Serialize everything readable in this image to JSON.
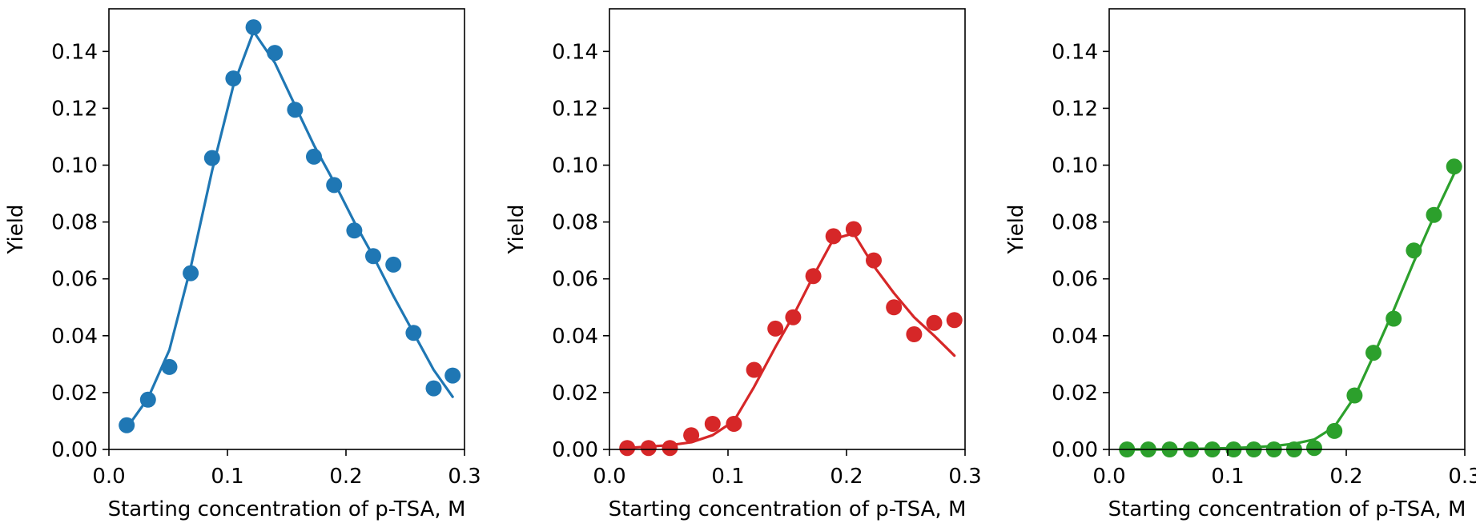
{
  "chart_data": [
    {
      "type": "scatter",
      "xlabel": "Starting concentration of p-TSA, M",
      "ylabel": "Yield",
      "xlim": [
        0.0,
        0.3
      ],
      "ylim": [
        0.0,
        0.155
      ],
      "xticks": [
        "0.0",
        "0.1",
        "0.2",
        "0.3"
      ],
      "yticks": [
        "0.00",
        "0.02",
        "0.04",
        "0.06",
        "0.08",
        "0.10",
        "0.12",
        "0.14"
      ],
      "color": "#1f77b4",
      "series": [
        {
          "x": [
            0.015,
            0.033,
            0.051,
            0.069,
            0.087,
            0.105,
            0.122,
            0.14,
            0.157,
            0.173,
            0.19,
            0.207,
            0.223,
            0.24,
            0.257,
            0.274,
            0.29
          ],
          "y": [
            0.0085,
            0.0175,
            0.029,
            0.062,
            0.1025,
            0.1305,
            0.1485,
            0.1395,
            0.1195,
            0.103,
            0.093,
            0.077,
            0.068,
            0.065,
            0.041,
            0.0215,
            0.026
          ]
        }
      ],
      "fit": {
        "x": [
          0.015,
          0.033,
          0.051,
          0.069,
          0.087,
          0.105,
          0.122,
          0.14,
          0.157,
          0.173,
          0.19,
          0.207,
          0.223,
          0.24,
          0.257,
          0.274,
          0.29
        ],
        "y": [
          0.0075,
          0.018,
          0.035,
          0.064,
          0.098,
          0.128,
          0.147,
          0.136,
          0.121,
          0.107,
          0.094,
          0.08,
          0.068,
          0.054,
          0.041,
          0.028,
          0.0185
        ]
      }
    },
    {
      "type": "scatter",
      "xlabel": "Starting concentration of p-TSA, M",
      "ylabel": "Yield",
      "xlim": [
        0.0,
        0.3
      ],
      "ylim": [
        0.0,
        0.155
      ],
      "xticks": [
        "0.0",
        "0.1",
        "0.2",
        "0.3"
      ],
      "yticks": [
        "0.00",
        "0.02",
        "0.04",
        "0.06",
        "0.08",
        "0.10",
        "0.12",
        "0.14"
      ],
      "color": "#d62728",
      "series": [
        {
          "x": [
            0.015,
            0.033,
            0.051,
            0.069,
            0.087,
            0.105,
            0.122,
            0.14,
            0.155,
            0.172,
            0.189,
            0.206,
            0.223,
            0.24,
            0.257,
            0.274,
            0.291
          ],
          "y": [
            0.0005,
            0.0005,
            0.0005,
            0.005,
            0.009,
            0.009,
            0.028,
            0.0425,
            0.0465,
            0.061,
            0.075,
            0.0775,
            0.0665,
            0.05,
            0.0405,
            0.0445,
            0.0455
          ]
        }
      ],
      "fit": {
        "x": [
          0.015,
          0.033,
          0.051,
          0.069,
          0.087,
          0.105,
          0.122,
          0.14,
          0.155,
          0.172,
          0.189,
          0.206,
          0.223,
          0.24,
          0.257,
          0.274,
          0.291
        ],
        "y": [
          0.0005,
          0.001,
          0.0015,
          0.0025,
          0.005,
          0.01,
          0.022,
          0.036,
          0.047,
          0.061,
          0.074,
          0.076,
          0.0645,
          0.055,
          0.0465,
          0.04,
          0.033
        ]
      }
    },
    {
      "type": "scatter",
      "xlabel": "Starting concentration of p-TSA, M",
      "ylabel": "Yield",
      "xlim": [
        0.0,
        0.3
      ],
      "ylim": [
        0.0,
        0.155
      ],
      "xticks": [
        "0.0",
        "0.1",
        "0.2",
        "0.3"
      ],
      "yticks": [
        "0.00",
        "0.02",
        "0.04",
        "0.06",
        "0.08",
        "0.10",
        "0.12",
        "0.14"
      ],
      "color": "#2ca02c",
      "series": [
        {
          "x": [
            0.015,
            0.033,
            0.051,
            0.069,
            0.087,
            0.105,
            0.122,
            0.139,
            0.156,
            0.173,
            0.19,
            0.207,
            0.223,
            0.24,
            0.257,
            0.274,
            0.291
          ],
          "y": [
            0.0,
            0.0,
            0.0,
            0.0,
            0.0,
            0.0,
            0.0,
            0.0,
            0.0,
            0.0005,
            0.0065,
            0.019,
            0.034,
            0.046,
            0.07,
            0.0825,
            0.0995
          ]
        }
      ],
      "fit": {
        "x": [
          0.015,
          0.033,
          0.051,
          0.069,
          0.087,
          0.105,
          0.122,
          0.139,
          0.156,
          0.173,
          0.19,
          0.207,
          0.223,
          0.24,
          0.257,
          0.274,
          0.291
        ],
        "y": [
          0.0,
          0.0,
          0.0,
          0.0002,
          0.0003,
          0.0005,
          0.0008,
          0.0012,
          0.002,
          0.0035,
          0.008,
          0.0185,
          0.033,
          0.049,
          0.066,
          0.082,
          0.097
        ]
      }
    }
  ]
}
